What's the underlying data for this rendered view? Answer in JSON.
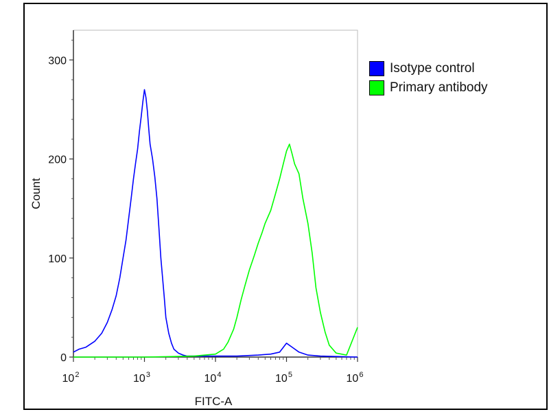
{
  "chart_data": {
    "type": "area",
    "xlabel": "FITC-A",
    "ylabel": "Count",
    "xscale": "log",
    "xlim": [
      100,
      1000000
    ],
    "ylim": [
      0,
      330
    ],
    "x_ticks": [
      {
        "base": "10",
        "exp": "2",
        "value": 100
      },
      {
        "base": "10",
        "exp": "3",
        "value": 1000
      },
      {
        "base": "10",
        "exp": "4",
        "value": 10000
      },
      {
        "base": "10",
        "exp": "5",
        "value": 100000
      },
      {
        "base": "10",
        "exp": "6",
        "value": 1000000
      }
    ],
    "y_ticks": [
      0,
      100,
      200,
      300
    ],
    "legend_position": "top-right",
    "series": [
      {
        "name": "Isotype control",
        "color": "#0000ff",
        "x": [
          100,
          120,
          150,
          200,
          250,
          300,
          350,
          400,
          450,
          500,
          550,
          600,
          650,
          700,
          750,
          800,
          850,
          900,
          950,
          1000,
          1050,
          1100,
          1150,
          1200,
          1300,
          1400,
          1500,
          1600,
          1700,
          1800,
          1900,
          2000,
          2200,
          2400,
          2600,
          3000,
          3500,
          4000,
          5000,
          6000,
          8000,
          10000,
          20000,
          40000,
          60000,
          80000,
          100000,
          120000,
          150000,
          200000,
          300000,
          1000000
        ],
        "y": [
          5,
          8,
          10,
          16,
          24,
          35,
          48,
          62,
          80,
          100,
          118,
          140,
          160,
          180,
          196,
          210,
          228,
          243,
          258,
          270,
          262,
          248,
          230,
          215,
          200,
          182,
          160,
          130,
          100,
          80,
          60,
          40,
          24,
          14,
          8,
          4,
          2,
          1,
          1,
          1,
          1,
          1,
          1,
          2,
          3,
          5,
          14,
          10,
          5,
          2,
          1,
          0
        ]
      },
      {
        "name": "Primary antibody",
        "color": "#00ff00",
        "x": [
          100,
          1000,
          5000,
          10000,
          13000,
          15000,
          18000,
          20000,
          23000,
          26000,
          30000,
          35000,
          40000,
          45000,
          50000,
          60000,
          70000,
          80000,
          90000,
          100000,
          110000,
          120000,
          130000,
          150000,
          170000,
          200000,
          230000,
          260000,
          300000,
          350000,
          400000,
          500000,
          700000,
          1000000
        ],
        "y": [
          0,
          0,
          1,
          3,
          8,
          15,
          28,
          40,
          58,
          72,
          88,
          102,
          115,
          125,
          135,
          148,
          165,
          180,
          195,
          208,
          215,
          205,
          195,
          185,
          160,
          135,
          105,
          70,
          45,
          25,
          12,
          4,
          2,
          30
        ]
      }
    ]
  }
}
